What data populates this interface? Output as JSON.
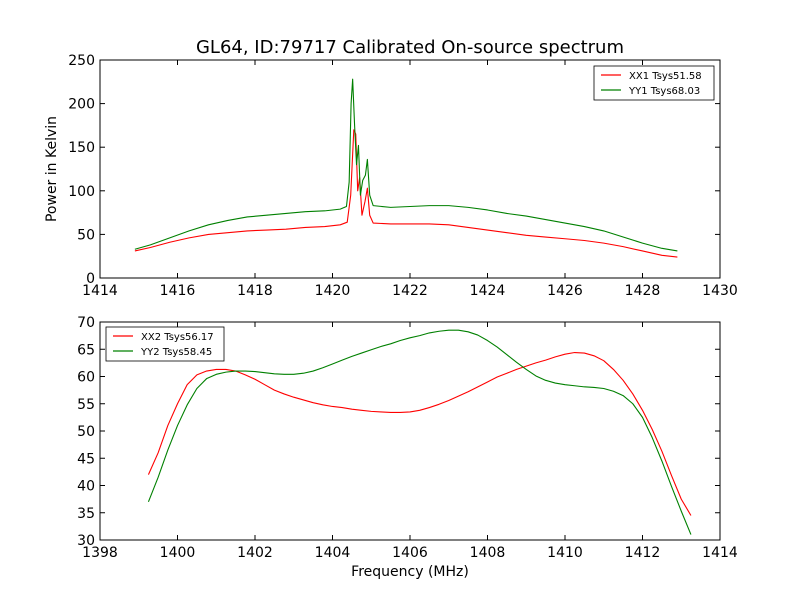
{
  "figure": {
    "title": "GL64, ID:79717 Calibrated On-source spectrum"
  },
  "chart_data": [
    {
      "type": "line",
      "title": "GL64, ID:79717 Calibrated On-source spectrum",
      "xlabel": "",
      "ylabel": "Power in Kelvin",
      "xlim": [
        1414,
        1430
      ],
      "ylim": [
        0,
        250
      ],
      "xticks": [
        1414,
        1416,
        1418,
        1420,
        1422,
        1424,
        1426,
        1428,
        1430
      ],
      "yticks": [
        0,
        50,
        100,
        150,
        200,
        250
      ],
      "grid": false,
      "legend_position": "upper right",
      "series": [
        {
          "name": "XX1 Tsys51.58",
          "color": "#ff0000",
          "points": [
            [
              1414.9,
              31
            ],
            [
              1415.3,
              35
            ],
            [
              1415.8,
              41
            ],
            [
              1416.3,
              46
            ],
            [
              1416.8,
              50
            ],
            [
              1417.3,
              52
            ],
            [
              1417.8,
              54
            ],
            [
              1418.3,
              55
            ],
            [
              1418.8,
              56
            ],
            [
              1419.3,
              58
            ],
            [
              1419.8,
              59
            ],
            [
              1420.2,
              61
            ],
            [
              1420.38,
              64
            ],
            [
              1420.47,
              95
            ],
            [
              1420.55,
              170
            ],
            [
              1420.6,
              165
            ],
            [
              1420.65,
              100
            ],
            [
              1420.7,
              115
            ],
            [
              1420.76,
              72
            ],
            [
              1420.84,
              88
            ],
            [
              1420.9,
              103
            ],
            [
              1420.96,
              72
            ],
            [
              1421.05,
              63
            ],
            [
              1421.5,
              62
            ],
            [
              1422.0,
              62
            ],
            [
              1422.5,
              62
            ],
            [
              1423.0,
              61
            ],
            [
              1423.5,
              58
            ],
            [
              1424.0,
              55
            ],
            [
              1424.5,
              52
            ],
            [
              1425.0,
              49
            ],
            [
              1425.5,
              47
            ],
            [
              1426.0,
              45
            ],
            [
              1426.5,
              43
            ],
            [
              1427.0,
              40
            ],
            [
              1427.5,
              36
            ],
            [
              1428.0,
              31
            ],
            [
              1428.5,
              26
            ],
            [
              1428.9,
              24
            ]
          ]
        },
        {
          "name": "YY1 Tsys68.03",
          "color": "#008000",
          "points": [
            [
              1414.9,
              33
            ],
            [
              1415.3,
              38
            ],
            [
              1415.8,
              46
            ],
            [
              1416.3,
              54
            ],
            [
              1416.8,
              61
            ],
            [
              1417.3,
              66
            ],
            [
              1417.8,
              70
            ],
            [
              1418.3,
              72
            ],
            [
              1418.8,
              74
            ],
            [
              1419.3,
              76
            ],
            [
              1419.8,
              77
            ],
            [
              1420.2,
              79
            ],
            [
              1420.36,
              82
            ],
            [
              1420.43,
              110
            ],
            [
              1420.48,
              200
            ],
            [
              1420.52,
              228
            ],
            [
              1420.57,
              175
            ],
            [
              1420.62,
              130
            ],
            [
              1420.67,
              152
            ],
            [
              1420.72,
              95
            ],
            [
              1420.78,
              112
            ],
            [
              1420.85,
              118
            ],
            [
              1420.9,
              136
            ],
            [
              1420.96,
              95
            ],
            [
              1421.05,
              83
            ],
            [
              1421.5,
              81
            ],
            [
              1422.0,
              82
            ],
            [
              1422.5,
              83
            ],
            [
              1423.0,
              83
            ],
            [
              1423.5,
              81
            ],
            [
              1424.0,
              78
            ],
            [
              1424.5,
              74
            ],
            [
              1425.0,
              71
            ],
            [
              1425.5,
              67
            ],
            [
              1426.0,
              63
            ],
            [
              1426.5,
              59
            ],
            [
              1427.0,
              54
            ],
            [
              1427.5,
              47
            ],
            [
              1428.0,
              40
            ],
            [
              1428.5,
              34
            ],
            [
              1428.9,
              31
            ]
          ]
        }
      ]
    },
    {
      "type": "line",
      "title": "",
      "xlabel": "Frequency (MHz)",
      "ylabel": "",
      "xlim": [
        1398,
        1414
      ],
      "ylim": [
        30,
        70
      ],
      "xticks": [
        1398,
        1400,
        1402,
        1404,
        1406,
        1408,
        1410,
        1412,
        1414
      ],
      "yticks": [
        30,
        35,
        40,
        45,
        50,
        55,
        60,
        65,
        70
      ],
      "grid": false,
      "legend_position": "upper left",
      "series": [
        {
          "name": "XX2 Tsys56.17",
          "color": "#ff0000",
          "points": [
            [
              1399.25,
              42
            ],
            [
              1399.5,
              46
            ],
            [
              1399.75,
              51
            ],
            [
              1400.0,
              55
            ],
            [
              1400.25,
              58.5
            ],
            [
              1400.5,
              60.3
            ],
            [
              1400.75,
              61
            ],
            [
              1401.0,
              61.3
            ],
            [
              1401.25,
              61.3
            ],
            [
              1401.5,
              61
            ],
            [
              1401.75,
              60.3
            ],
            [
              1402.0,
              59.5
            ],
            [
              1402.25,
              58.5
            ],
            [
              1402.5,
              57.5
            ],
            [
              1402.75,
              56.8
            ],
            [
              1403.0,
              56.2
            ],
            [
              1403.25,
              55.7
            ],
            [
              1403.5,
              55.2
            ],
            [
              1403.75,
              54.8
            ],
            [
              1404.0,
              54.5
            ],
            [
              1404.25,
              54.3
            ],
            [
              1404.5,
              54.0
            ],
            [
              1404.75,
              53.8
            ],
            [
              1405.0,
              53.6
            ],
            [
              1405.25,
              53.5
            ],
            [
              1405.5,
              53.4
            ],
            [
              1405.75,
              53.4
            ],
            [
              1406.0,
              53.5
            ],
            [
              1406.25,
              53.8
            ],
            [
              1406.5,
              54.3
            ],
            [
              1406.75,
              54.9
            ],
            [
              1407.0,
              55.6
            ],
            [
              1407.25,
              56.4
            ],
            [
              1407.5,
              57.2
            ],
            [
              1407.75,
              58.1
            ],
            [
              1408.0,
              59.0
            ],
            [
              1408.25,
              59.9
            ],
            [
              1408.5,
              60.6
            ],
            [
              1408.75,
              61.3
            ],
            [
              1409.0,
              61.9
            ],
            [
              1409.25,
              62.5
            ],
            [
              1409.5,
              63.0
            ],
            [
              1409.75,
              63.6
            ],
            [
              1410.0,
              64.1
            ],
            [
              1410.25,
              64.4
            ],
            [
              1410.5,
              64.3
            ],
            [
              1410.75,
              63.8
            ],
            [
              1411.0,
              62.9
            ],
            [
              1411.25,
              61.3
            ],
            [
              1411.5,
              59.3
            ],
            [
              1411.75,
              56.8
            ],
            [
              1412.0,
              53.8
            ],
            [
              1412.25,
              50.3
            ],
            [
              1412.5,
              46.3
            ],
            [
              1412.75,
              41.8
            ],
            [
              1413.0,
              37.5
            ],
            [
              1413.25,
              34.5
            ]
          ]
        },
        {
          "name": "YY2 Tsys58.45",
          "color": "#008000",
          "points": [
            [
              1399.25,
              37
            ],
            [
              1399.5,
              41.5
            ],
            [
              1399.75,
              46.5
            ],
            [
              1400.0,
              51
            ],
            [
              1400.25,
              54.8
            ],
            [
              1400.5,
              57.8
            ],
            [
              1400.75,
              59.6
            ],
            [
              1401.0,
              60.4
            ],
            [
              1401.25,
              60.8
            ],
            [
              1401.5,
              61.0
            ],
            [
              1401.75,
              61.0
            ],
            [
              1402.0,
              60.9
            ],
            [
              1402.25,
              60.7
            ],
            [
              1402.5,
              60.5
            ],
            [
              1402.75,
              60.4
            ],
            [
              1403.0,
              60.4
            ],
            [
              1403.25,
              60.6
            ],
            [
              1403.5,
              61.0
            ],
            [
              1403.75,
              61.6
            ],
            [
              1404.0,
              62.3
            ],
            [
              1404.25,
              63.0
            ],
            [
              1404.5,
              63.7
            ],
            [
              1404.75,
              64.3
            ],
            [
              1405.0,
              64.9
            ],
            [
              1405.25,
              65.5
            ],
            [
              1405.5,
              66.0
            ],
            [
              1405.75,
              66.6
            ],
            [
              1406.0,
              67.1
            ],
            [
              1406.25,
              67.5
            ],
            [
              1406.5,
              68.0
            ],
            [
              1406.75,
              68.3
            ],
            [
              1407.0,
              68.5
            ],
            [
              1407.25,
              68.5
            ],
            [
              1407.5,
              68.2
            ],
            [
              1407.75,
              67.6
            ],
            [
              1408.0,
              66.6
            ],
            [
              1408.25,
              65.4
            ],
            [
              1408.5,
              64.0
            ],
            [
              1408.75,
              62.6
            ],
            [
              1409.0,
              61.3
            ],
            [
              1409.25,
              60.1
            ],
            [
              1409.5,
              59.3
            ],
            [
              1409.75,
              58.8
            ],
            [
              1410.0,
              58.5
            ],
            [
              1410.25,
              58.3
            ],
            [
              1410.5,
              58.1
            ],
            [
              1410.75,
              58.0
            ],
            [
              1411.0,
              57.8
            ],
            [
              1411.25,
              57.3
            ],
            [
              1411.5,
              56.5
            ],
            [
              1411.75,
              55.0
            ],
            [
              1412.0,
              52.5
            ],
            [
              1412.25,
              48.8
            ],
            [
              1412.5,
              44.5
            ],
            [
              1412.75,
              39.8
            ],
            [
              1413.0,
              35.3
            ],
            [
              1413.25,
              31
            ]
          ]
        }
      ]
    }
  ]
}
